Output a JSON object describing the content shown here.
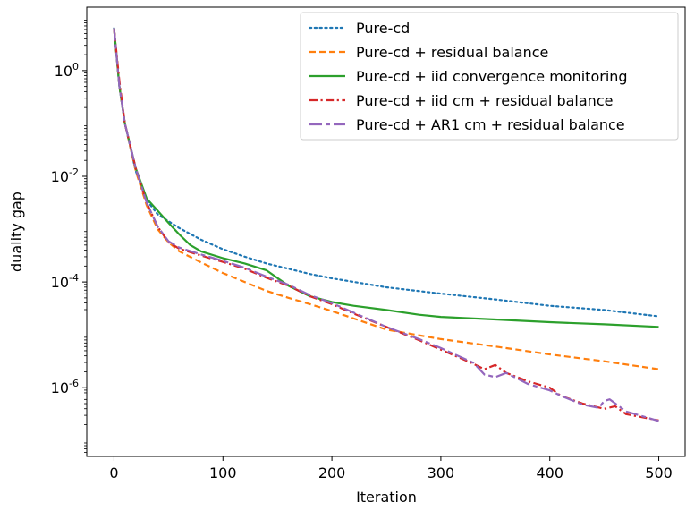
{
  "chart_data": {
    "type": "line",
    "title": "",
    "xlabel": "Iteration",
    "ylabel": "duality gap",
    "xlim": [
      -25,
      525
    ],
    "ylim_log10": [
      -7.3,
      1.2
    ],
    "yscale": "log",
    "grid": false,
    "legend_position": "top-right",
    "x_ticks": [
      0,
      100,
      200,
      300,
      400,
      500
    ],
    "x_tick_labels": [
      "0",
      "100",
      "200",
      "300",
      "400",
      "500"
    ],
    "y_ticks_log10": [
      0,
      -2,
      -4,
      -6
    ],
    "y_tick_labels": [
      {
        "base": "10",
        "exp": "0"
      },
      {
        "base": "10",
        "exp": "-2"
      },
      {
        "base": "10",
        "exp": "-4"
      },
      {
        "base": "10",
        "exp": "-6"
      }
    ],
    "series": [
      {
        "name": "Pure-cd",
        "color": "#1f77b4",
        "style": "dotted",
        "points_log10": [
          [
            0,
            0.8
          ],
          [
            5,
            -0.3
          ],
          [
            10,
            -1.0
          ],
          [
            20,
            -1.9
          ],
          [
            30,
            -2.45
          ],
          [
            40,
            -2.72
          ],
          [
            50,
            -2.85
          ],
          [
            60,
            -2.98
          ],
          [
            80,
            -3.2
          ],
          [
            100,
            -3.38
          ],
          [
            120,
            -3.52
          ],
          [
            140,
            -3.65
          ],
          [
            160,
            -3.75
          ],
          [
            180,
            -3.85
          ],
          [
            200,
            -3.93
          ],
          [
            250,
            -4.1
          ],
          [
            300,
            -4.22
          ],
          [
            350,
            -4.33
          ],
          [
            400,
            -4.45
          ],
          [
            450,
            -4.53
          ],
          [
            500,
            -4.65
          ]
        ]
      },
      {
        "name": "Pure-cd + residual balance",
        "color": "#ff7f0e",
        "style": "dashed",
        "points_log10": [
          [
            0,
            0.8
          ],
          [
            5,
            -0.3
          ],
          [
            10,
            -1.0
          ],
          [
            20,
            -1.9
          ],
          [
            30,
            -2.55
          ],
          [
            40,
            -3.0
          ],
          [
            50,
            -3.25
          ],
          [
            60,
            -3.42
          ],
          [
            80,
            -3.63
          ],
          [
            100,
            -3.83
          ],
          [
            120,
            -4.0
          ],
          [
            140,
            -4.17
          ],
          [
            160,
            -4.3
          ],
          [
            180,
            -4.42
          ],
          [
            200,
            -4.55
          ],
          [
            250,
            -4.9
          ],
          [
            300,
            -5.08
          ],
          [
            350,
            -5.22
          ],
          [
            400,
            -5.37
          ],
          [
            450,
            -5.5
          ],
          [
            500,
            -5.65
          ]
        ]
      },
      {
        "name": "Pure-cd + iid convergence monitoring",
        "color": "#2ca02c",
        "style": "solid",
        "points_log10": [
          [
            0,
            0.8
          ],
          [
            5,
            -0.3
          ],
          [
            10,
            -1.0
          ],
          [
            20,
            -1.85
          ],
          [
            30,
            -2.42
          ],
          [
            40,
            -2.65
          ],
          [
            50,
            -2.88
          ],
          [
            60,
            -3.1
          ],
          [
            70,
            -3.3
          ],
          [
            80,
            -3.42
          ],
          [
            100,
            -3.55
          ],
          [
            120,
            -3.65
          ],
          [
            140,
            -3.78
          ],
          [
            160,
            -4.07
          ],
          [
            180,
            -4.27
          ],
          [
            200,
            -4.38
          ],
          [
            220,
            -4.45
          ],
          [
            250,
            -4.53
          ],
          [
            280,
            -4.62
          ],
          [
            300,
            -4.66
          ],
          [
            350,
            -4.71
          ],
          [
            400,
            -4.76
          ],
          [
            450,
            -4.8
          ],
          [
            500,
            -4.85
          ]
        ]
      },
      {
        "name": "Pure-cd + iid cm + residual balance",
        "color": "#d62728",
        "style": "dashdot",
        "points_log10": [
          [
            0,
            0.8
          ],
          [
            5,
            -0.2
          ],
          [
            10,
            -1.0
          ],
          [
            20,
            -1.85
          ],
          [
            30,
            -2.5
          ],
          [
            40,
            -2.95
          ],
          [
            50,
            -3.25
          ],
          [
            60,
            -3.37
          ],
          [
            80,
            -3.5
          ],
          [
            100,
            -3.62
          ],
          [
            120,
            -3.75
          ],
          [
            140,
            -3.92
          ],
          [
            160,
            -4.07
          ],
          [
            180,
            -4.27
          ],
          [
            200,
            -4.42
          ],
          [
            220,
            -4.6
          ],
          [
            250,
            -4.85
          ],
          [
            280,
            -5.1
          ],
          [
            300,
            -5.28
          ],
          [
            330,
            -5.55
          ],
          [
            340,
            -5.65
          ],
          [
            350,
            -5.57
          ],
          [
            360,
            -5.72
          ],
          [
            380,
            -5.88
          ],
          [
            400,
            -6.0
          ],
          [
            410,
            -6.15
          ],
          [
            430,
            -6.3
          ],
          [
            450,
            -6.4
          ],
          [
            460,
            -6.35
          ],
          [
            470,
            -6.5
          ],
          [
            500,
            -6.62
          ]
        ]
      },
      {
        "name": "Pure-cd + AR1 cm + residual balance",
        "color": "#9467bd",
        "style": "longdash",
        "points_log10": [
          [
            0,
            0.8
          ],
          [
            5,
            -0.3
          ],
          [
            10,
            -1.0
          ],
          [
            20,
            -1.85
          ],
          [
            30,
            -2.5
          ],
          [
            40,
            -2.95
          ],
          [
            50,
            -3.23
          ],
          [
            60,
            -3.35
          ],
          [
            80,
            -3.48
          ],
          [
            100,
            -3.6
          ],
          [
            120,
            -3.73
          ],
          [
            140,
            -3.9
          ],
          [
            160,
            -4.05
          ],
          [
            180,
            -4.25
          ],
          [
            200,
            -4.4
          ],
          [
            220,
            -4.58
          ],
          [
            250,
            -4.85
          ],
          [
            280,
            -5.08
          ],
          [
            300,
            -5.25
          ],
          [
            330,
            -5.53
          ],
          [
            340,
            -5.75
          ],
          [
            350,
            -5.8
          ],
          [
            360,
            -5.72
          ],
          [
            380,
            -5.93
          ],
          [
            400,
            -6.05
          ],
          [
            410,
            -6.15
          ],
          [
            430,
            -6.32
          ],
          [
            445,
            -6.38
          ],
          [
            450,
            -6.25
          ],
          [
            455,
            -6.22
          ],
          [
            470,
            -6.45
          ],
          [
            500,
            -6.63
          ]
        ]
      }
    ]
  }
}
